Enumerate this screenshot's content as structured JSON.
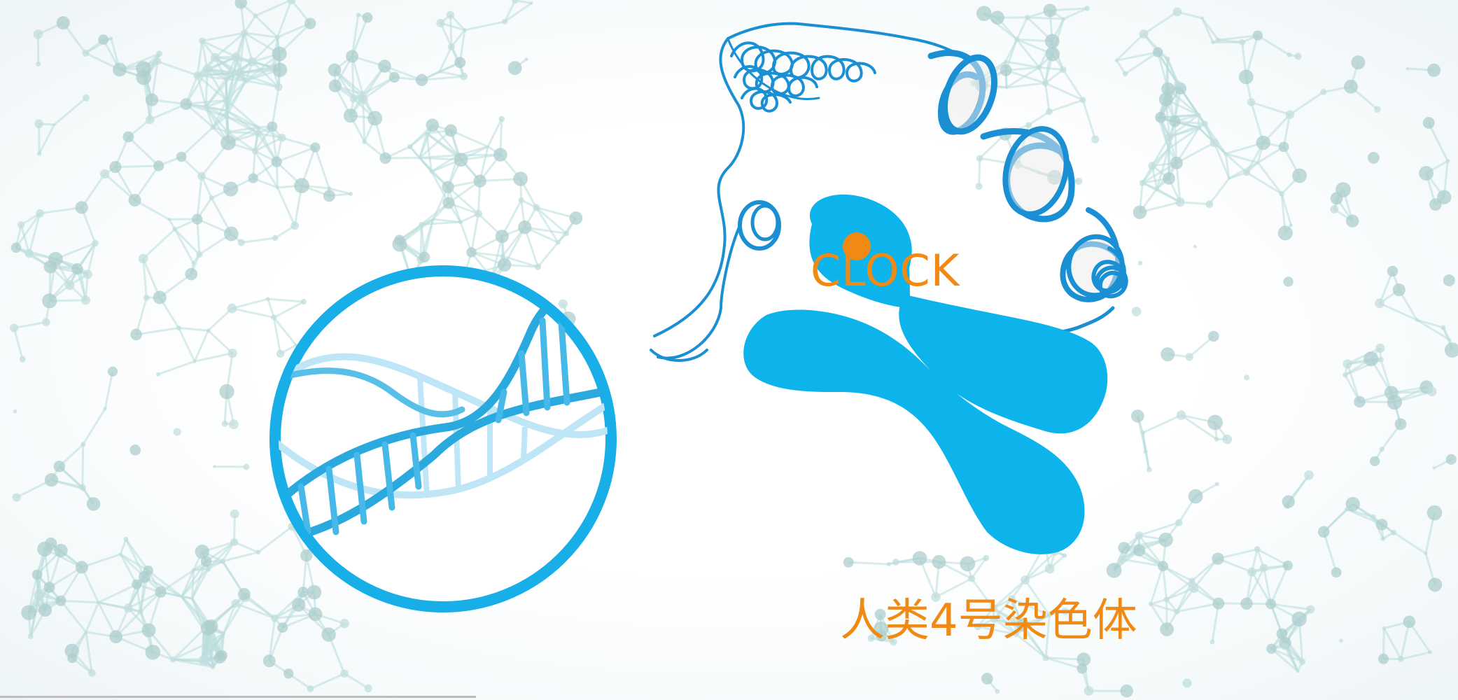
{
  "labels": {
    "gene": "CLOCK",
    "chromosome_caption": "人类4号染色体"
  },
  "colors": {
    "chromosome_blue": "#0db4ec",
    "ring_blue": "#18aee8",
    "label_orange": "#f08a14",
    "marker_orange": "#f08a14",
    "network_teal": "#b9dcdc"
  },
  "icons": {
    "dna_magnifier": "dna-helix-in-circle",
    "chromosome": "x-shaped-chromosome",
    "chromatin_fiber": "coiled-chromatin-strand",
    "gene_locus_marker": "orange-dot",
    "background": "molecular-network"
  }
}
